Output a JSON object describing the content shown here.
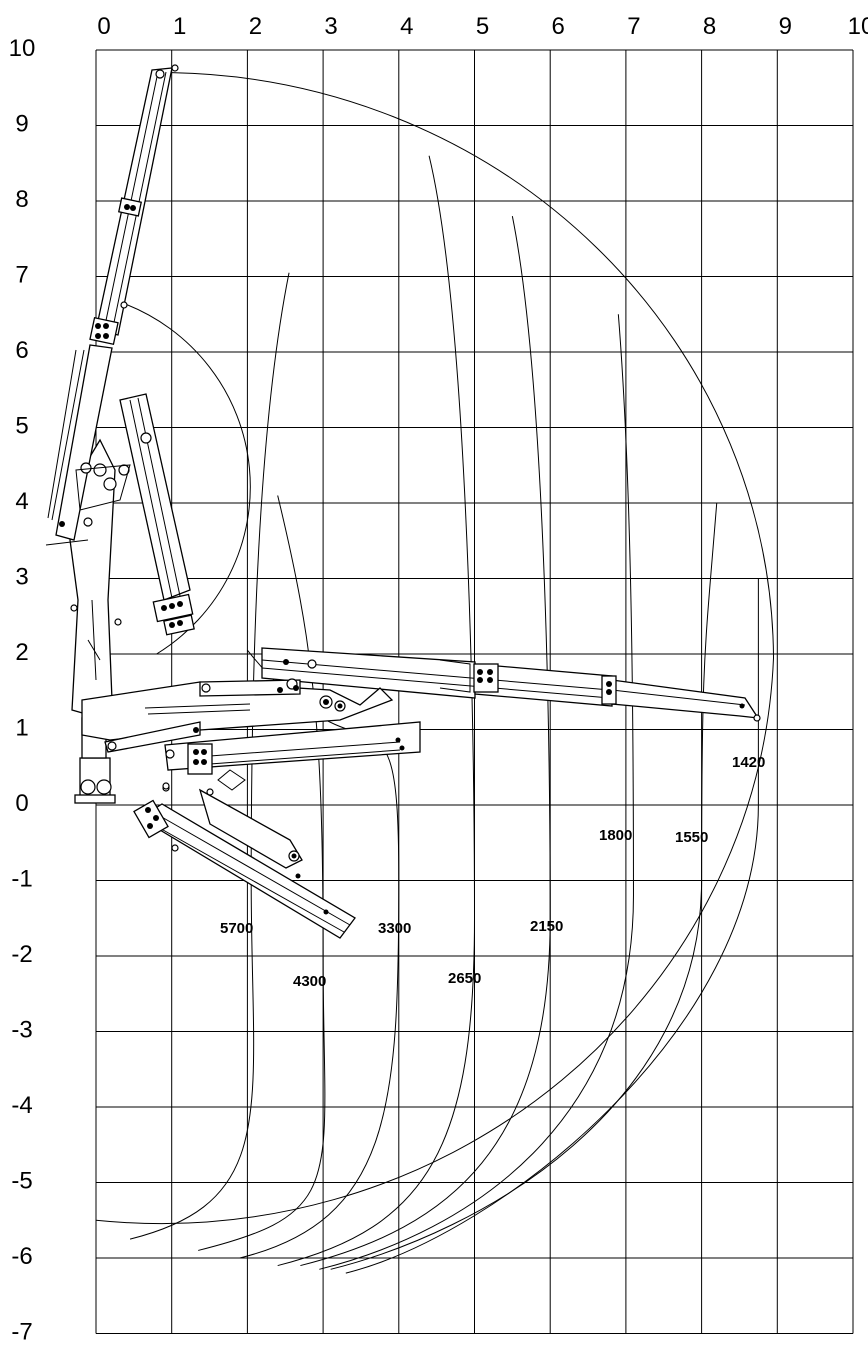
{
  "chart_data": {
    "type": "diagram",
    "x_ticks": [
      "0",
      "1",
      "2",
      "3",
      "4",
      "5",
      "6",
      "7",
      "8",
      "9",
      "10"
    ],
    "y_ticks": [
      "10",
      "9",
      "8",
      "7",
      "6",
      "5",
      "4",
      "3",
      "2",
      "1",
      "0",
      "-1",
      "-2",
      "-3",
      "-4",
      "-5",
      "-6",
      "-7"
    ],
    "xlim": [
      0,
      10
    ],
    "ylim": [
      -7,
      10
    ],
    "grid": true,
    "max_reach_envelope": true,
    "load_curves": [
      {
        "label": "5700",
        "reach_m": 2.0
      },
      {
        "label": "4300",
        "reach_m": 3.0
      },
      {
        "label": "3300",
        "reach_m": 4.0
      },
      {
        "label": "2650",
        "reach_m": 5.0
      },
      {
        "label": "2150",
        "reach_m": 6.0
      },
      {
        "label": "1800",
        "reach_m": 7.0
      },
      {
        "label": "1550",
        "reach_m": 8.0
      },
      {
        "label": "1420",
        "reach_m": 8.9
      }
    ]
  }
}
